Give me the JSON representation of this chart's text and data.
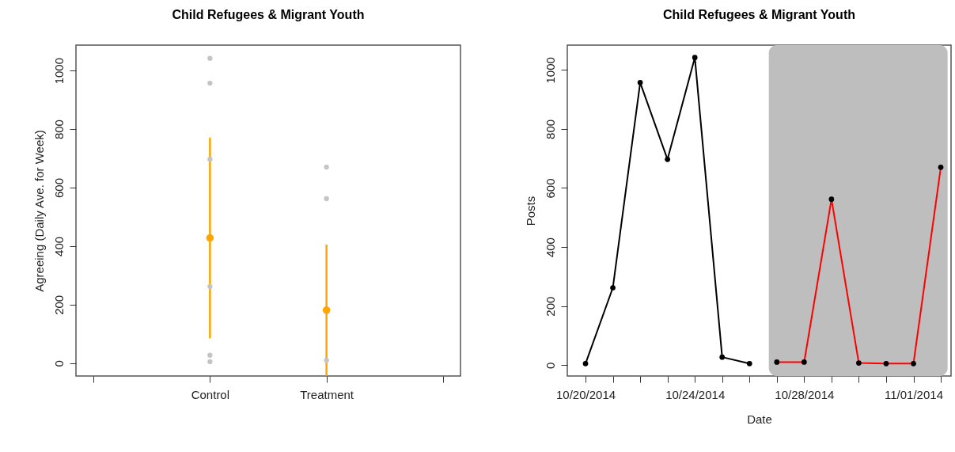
{
  "chart_data": [
    {
      "type": "scatter",
      "title": "Child Refugees & Migrant Youth",
      "ylabel": "Agreeing (Daily Ave. for Week)",
      "categories": [
        null,
        "Control",
        "Treatment",
        null
      ],
      "ylim": [
        -44,
        1087
      ],
      "yticks": [
        0,
        200,
        400,
        600,
        800,
        1000
      ],
      "grid": false,
      "marker": "circle",
      "series": [
        {
          "color": "#ffa500",
          "values": [
            null,
            428,
            181,
            null
          ],
          "errors": [
            null,
            343,
            224,
            null
          ]
        },
        {
          "color": "#c4c4c4",
          "x": [
            "Control",
            "Control",
            "Control",
            "Control",
            "Control",
            "Control",
            "Treatment",
            "Treatment",
            "Treatment",
            "Treatment",
            "Treatment",
            "Treatment",
            "Treatment"
          ],
          "values": [
            1042,
            957,
            697,
            262,
            27,
            5,
            670,
            562,
            10,
            null,
            null,
            null,
            null
          ]
        }
      ]
    },
    {
      "type": "line",
      "title": "Child Refugees & Migrant Youth",
      "xlabel": "Date",
      "ylabel": "Posts",
      "xlim": [
        "2014-10-19T08:00",
        "2014-11-02T09:00"
      ],
      "xticks": [
        {
          "value": "2014-10-20",
          "label": "10/20/2014"
        },
        {
          "value": "2014-10-21",
          "label": null
        },
        {
          "value": "2014-10-22",
          "label": null
        },
        {
          "value": "2014-10-23",
          "label": null
        },
        {
          "value": "2014-10-24",
          "label": "10/24/2014"
        },
        {
          "value": "2014-10-25",
          "label": null
        },
        {
          "value": "2014-10-26",
          "label": null
        },
        {
          "value": "2014-10-27",
          "label": null
        },
        {
          "value": "2014-10-28",
          "label": "10/28/2014"
        },
        {
          "value": "2014-10-29",
          "label": null
        },
        {
          "value": "2014-10-30",
          "label": null
        },
        {
          "value": "2014-10-31",
          "label": null
        },
        {
          "value": "2014-11-01",
          "label": "11/01/2014"
        },
        {
          "value": "2014-11-02",
          "label": null
        }
      ],
      "ylim": [
        -37,
        1084
      ],
      "yticks": [
        0,
        200,
        400,
        600,
        800,
        1000
      ],
      "grid": false,
      "marker": "circle",
      "line_style": "solid",
      "bands": [
        {
          "axis": "x",
          "from": "2014-10-26T17:00",
          "to": "2014-11-02T06:00",
          "color": "#bebebe"
        }
      ],
      "series": [
        {
          "color": "#000000",
          "x": [
            "2014-10-20",
            "2014-10-21",
            "2014-10-22",
            "2014-10-23",
            "2014-10-24",
            "2014-10-25",
            "2014-10-26"
          ],
          "values": [
            5,
            262,
            957,
            697,
            1042,
            27,
            5
          ]
        },
        {
          "color": "#ff0000",
          "x": [
            "2014-10-27",
            "2014-10-28",
            "2014-10-29",
            "2014-10-30",
            "2014-10-31",
            "2014-11-01",
            "2014-11-02"
          ],
          "values": [
            10,
            10,
            562,
            7,
            5,
            5,
            670
          ]
        }
      ]
    }
  ]
}
